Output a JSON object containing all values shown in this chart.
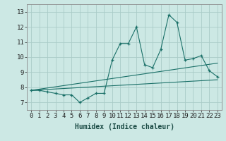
{
  "xlabel": "Humidex (Indice chaleur)",
  "background_color": "#cce8e4",
  "line_color": "#1a7068",
  "xlim": [
    -0.5,
    23.5
  ],
  "ylim": [
    6.5,
    13.5
  ],
  "xtick_labels": [
    "0",
    "1",
    "2",
    "3",
    "4",
    "5",
    "6",
    "7",
    "8",
    "9",
    "10",
    "11",
    "12",
    "13",
    "14",
    "15",
    "16",
    "17",
    "18",
    "19",
    "20",
    "21",
    "22",
    "23"
  ],
  "ytick_values": [
    7,
    8,
    9,
    10,
    11,
    12,
    13
  ],
  "series1_x": [
    0,
    1,
    2,
    3,
    4,
    5,
    6,
    7,
    8,
    9,
    10,
    11,
    12,
    13,
    14,
    15,
    16,
    17,
    18,
    19,
    20,
    21,
    22,
    23
  ],
  "series1_y": [
    7.8,
    7.8,
    7.7,
    7.6,
    7.5,
    7.5,
    7.0,
    7.3,
    7.6,
    7.6,
    9.8,
    10.9,
    10.9,
    12.0,
    9.5,
    9.3,
    10.5,
    12.8,
    12.3,
    9.8,
    9.9,
    10.1,
    9.1,
    8.7
  ],
  "series2_x": [
    0,
    23
  ],
  "series2_y": [
    7.8,
    8.5
  ],
  "series3_x": [
    0,
    23
  ],
  "series3_y": [
    7.8,
    9.6
  ],
  "grid_color": "#aaccc8",
  "xlabel_fontsize": 7,
  "tick_fontsize": 6.5
}
